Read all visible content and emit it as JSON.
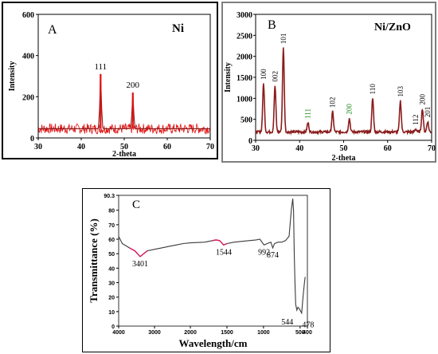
{
  "colors": {
    "noise_red": "#e01010",
    "line_dark_red": "#8b1c1c",
    "panel_c_line": "#3a3a3a",
    "panel_c_highlight": "#d81b60",
    "green_label": "#1c8a1c"
  },
  "chart_data": [
    {
      "type": "line",
      "panel_letter": "A",
      "title": "Ni",
      "xlabel": "2-theta",
      "ylabel": "Intensity",
      "xlim": [
        30,
        70
      ],
      "ylim": [
        0,
        600
      ],
      "xticks": [
        "30",
        "40",
        "50",
        "60",
        "70"
      ],
      "yticks": [
        "0",
        "200",
        "400",
        "600"
      ],
      "baseline": 45,
      "noise_amplitude": 25,
      "peaks": [
        {
          "x": 44.5,
          "y": 310,
          "label": "111"
        },
        {
          "x": 52.0,
          "y": 220,
          "label": "200"
        }
      ]
    },
    {
      "type": "line",
      "panel_letter": "B",
      "title": "Ni/ZnO",
      "xlabel": "2-theta",
      "ylabel": "Intensity",
      "xlim": [
        30,
        70
      ],
      "ylim": [
        0,
        3000
      ],
      "xticks": [
        "30",
        "40",
        "50",
        "60",
        "70"
      ],
      "yticks": [
        "0",
        "500",
        "1000",
        "1500",
        "2000",
        "2500",
        "3000"
      ],
      "baseline": 200,
      "peaks": [
        {
          "x": 31.8,
          "y": 1350,
          "label": "100",
          "color": "black"
        },
        {
          "x": 34.4,
          "y": 1300,
          "label": "002",
          "color": "black"
        },
        {
          "x": 36.3,
          "y": 2200,
          "label": "101",
          "color": "black"
        },
        {
          "x": 41.9,
          "y": 420,
          "label": "111",
          "color": "green"
        },
        {
          "x": 47.5,
          "y": 680,
          "label": "102",
          "color": "black"
        },
        {
          "x": 51.3,
          "y": 520,
          "label": "200",
          "color": "green"
        },
        {
          "x": 56.6,
          "y": 1000,
          "label": "110",
          "color": "black"
        },
        {
          "x": 62.9,
          "y": 940,
          "label": "103",
          "color": "black"
        },
        {
          "x": 66.4,
          "y": 270,
          "label": "112",
          "color": "black"
        },
        {
          "x": 67.9,
          "y": 750,
          "label": "200",
          "color": "black"
        },
        {
          "x": 69.1,
          "y": 450,
          "label": "201",
          "color": "black"
        }
      ]
    },
    {
      "type": "line",
      "panel_letter": "C",
      "xlabel": "Wavelength/cm",
      "ylabel": "Transmittance  (%)",
      "x_reversed": true,
      "xlim": [
        400,
        4000
      ],
      "ylim": [
        0,
        90.3
      ],
      "xticks": [
        "4000",
        "3000",
        "2000",
        "1500",
        "1000",
        "500",
        "400"
      ],
      "yticks": [
        "90.3",
        "80",
        "70",
        "60",
        "50",
        "40",
        "30",
        "20",
        "10",
        "0"
      ],
      "points": [
        [
          4000,
          62
        ],
        [
          3900,
          57
        ],
        [
          3700,
          54
        ],
        [
          3550,
          52
        ],
        [
          3401,
          48
        ],
        [
          3300,
          50
        ],
        [
          3200,
          52
        ],
        [
          3000,
          53
        ],
        [
          2800,
          54
        ],
        [
          2600,
          55
        ],
        [
          2400,
          56
        ],
        [
          2200,
          57
        ],
        [
          2000,
          57.5
        ],
        [
          1800,
          58
        ],
        [
          1700,
          59
        ],
        [
          1650,
          59.5
        ],
        [
          1600,
          59
        ],
        [
          1544,
          56
        ],
        [
          1500,
          57
        ],
        [
          1400,
          58
        ],
        [
          1200,
          59
        ],
        [
          1100,
          59.5
        ],
        [
          1050,
          60
        ],
        [
          992,
          56
        ],
        [
          950,
          57
        ],
        [
          900,
          58
        ],
        [
          874,
          54
        ],
        [
          850,
          57
        ],
        [
          800,
          58
        ],
        [
          750,
          58
        ],
        [
          700,
          59
        ],
        [
          650,
          62
        ],
        [
          620,
          80
        ],
        [
          600,
          88
        ],
        [
          590,
          80
        ],
        [
          580,
          50
        ],
        [
          570,
          30
        ],
        [
          560,
          15
        ],
        [
          544,
          11
        ],
        [
          530,
          13
        ],
        [
          510,
          12
        ],
        [
          490,
          10
        ],
        [
          478,
          9
        ],
        [
          460,
          20
        ],
        [
          440,
          30
        ],
        [
          430,
          34
        ]
      ],
      "highlight_ranges": [
        [
          3700,
          3150
        ],
        [
          1750,
          1500
        ]
      ],
      "annotations": [
        {
          "x": 3401,
          "label": "3401"
        },
        {
          "x": 1544,
          "label": "1544"
        },
        {
          "x": 992,
          "label": "992"
        },
        {
          "x": 874,
          "label": "874"
        },
        {
          "x": 544,
          "label": "544"
        },
        {
          "x": 478,
          "label": "478"
        }
      ]
    }
  ]
}
